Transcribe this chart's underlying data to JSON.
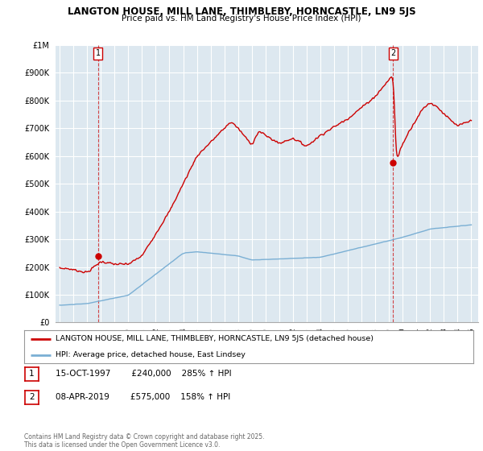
{
  "title": "LANGTON HOUSE, MILL LANE, THIMBLEBY, HORNCASTLE, LN9 5JS",
  "subtitle": "Price paid vs. HM Land Registry's House Price Index (HPI)",
  "ylim": [
    0,
    1000000
  ],
  "yticks": [
    0,
    100000,
    200000,
    300000,
    400000,
    500000,
    600000,
    700000,
    800000,
    900000,
    1000000
  ],
  "ytick_labels": [
    "£0",
    "£100K",
    "£200K",
    "£300K",
    "£400K",
    "£500K",
    "£600K",
    "£700K",
    "£800K",
    "£900K",
    "£1M"
  ],
  "red_line_color": "#cc0000",
  "blue_line_color": "#7aafd4",
  "chart_bg_color": "#dde8f0",
  "background_color": "#ffffff",
  "grid_color": "#ffffff",
  "legend_label_red": "LANGTON HOUSE, MILL LANE, THIMBLEBY, HORNCASTLE, LN9 5JS (detached house)",
  "legend_label_blue": "HPI: Average price, detached house, East Lindsey",
  "footnote": "Contains HM Land Registry data © Crown copyright and database right 2025.\nThis data is licensed under the Open Government Licence v3.0.",
  "table_row1": [
    "1",
    "15-OCT-1997",
    "£240,000",
    "285% ↑ HPI"
  ],
  "table_row2": [
    "2",
    "08-APR-2019",
    "£575,000",
    "158% ↑ HPI"
  ],
  "point1_year": 1997.8,
  "point1_price": 240000,
  "point2_year": 2019.3,
  "point2_price": 575000
}
